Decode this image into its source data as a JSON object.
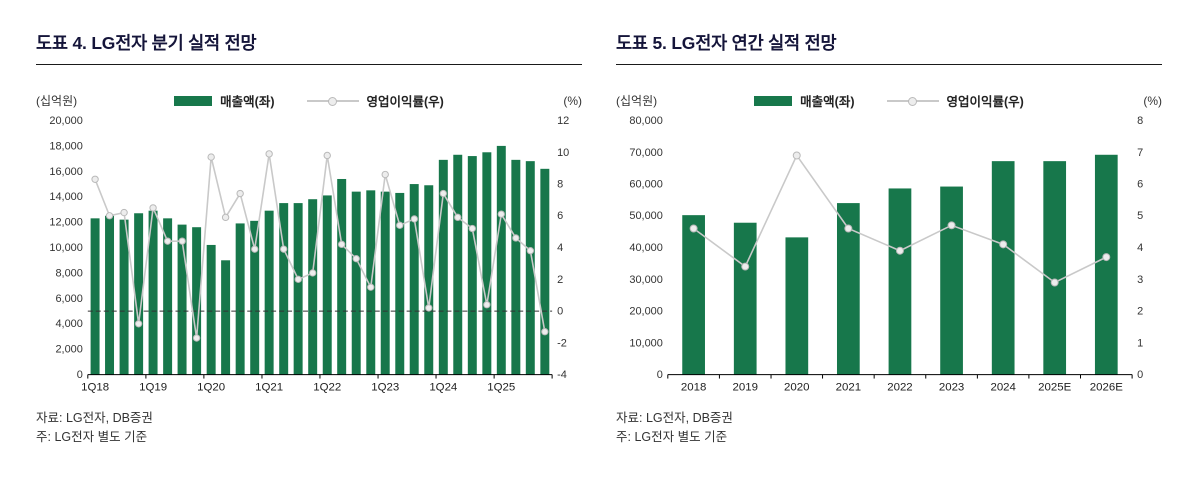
{
  "page": {
    "background": "#ffffff"
  },
  "figures": [
    {
      "title": "도표 4. LG전자 분기 실적 전망",
      "unit_left": "(십억원)",
      "unit_right": "(%)",
      "legend": [
        {
          "label": "매출액(좌)",
          "type": "bar"
        },
        {
          "label": "영업이익률(우)",
          "type": "line"
        }
      ],
      "source": "자료: LG전자, DB증권",
      "note": "주: LG전자 별도 기준",
      "chart_data": {
        "type": "bar+line dual-axis combo",
        "bar_color": "#17774b",
        "line_color": "#c9c9c9",
        "marker_fill": "#ededed",
        "marker_stroke": "#b9b9b9",
        "bar_width_frac": 0.62,
        "marker_r": 3.2,
        "zero_line": true,
        "x_tick_every": 4,
        "x_tick_labels": [
          "1Q18",
          "1Q19",
          "1Q20",
          "1Q21",
          "1Q22",
          "1Q23",
          "1Q24",
          "1Q25"
        ],
        "categories": [
          "1Q18",
          "2Q18",
          "3Q18",
          "4Q18",
          "1Q19",
          "2Q19",
          "3Q19",
          "4Q19",
          "1Q20",
          "2Q20",
          "3Q20",
          "4Q20",
          "1Q21",
          "2Q21",
          "3Q21",
          "4Q21",
          "1Q22",
          "2Q22",
          "3Q22",
          "4Q22",
          "1Q23",
          "2Q23",
          "3Q23",
          "4Q23",
          "1Q24",
          "2Q24",
          "3Q24",
          "4Q24",
          "1Q25",
          "2Q25",
          "3Q25",
          "4Q25"
        ],
        "left_axis": {
          "min": 0,
          "max": 20000,
          "step": 2000,
          "unit": "십억원"
        },
        "right_axis": {
          "min": -4,
          "max": 12,
          "step": 2,
          "unit": "%"
        },
        "series": [
          {
            "name": "매출액(좌)",
            "type": "bar",
            "axis": "left",
            "values": [
              12300,
              12500,
              12200,
              12700,
              12900,
              12300,
              11800,
              11600,
              10200,
              9000,
              11900,
              12100,
              12900,
              13500,
              13500,
              13800,
              14100,
              15400,
              14400,
              14500,
              14400,
              14300,
              15000,
              14900,
              16900,
              17300,
              17200,
              17500,
              18000,
              16900,
              16800,
              16200
            ]
          },
          {
            "name": "영업이익률(우)",
            "type": "line",
            "axis": "right",
            "values": [
              8.3,
              6.0,
              6.2,
              -0.8,
              6.5,
              4.4,
              4.4,
              -1.7,
              9.7,
              5.9,
              7.4,
              3.9,
              9.9,
              3.9,
              2.0,
              2.4,
              9.8,
              4.2,
              3.3,
              1.5,
              8.6,
              5.4,
              5.8,
              0.2,
              7.4,
              5.9,
              5.2,
              0.4,
              6.1,
              4.6,
              3.8,
              -1.3
            ]
          }
        ]
      }
    },
    {
      "title": "도표 5. LG전자 연간 실적 전망",
      "unit_left": "(십억원)",
      "unit_right": "(%)",
      "legend": [
        {
          "label": "매출액(좌)",
          "type": "bar"
        },
        {
          "label": "영업이익률(우)",
          "type": "line"
        }
      ],
      "source": "자료: LG전자, DB증권",
      "note": "주: LG전자 별도 기준",
      "chart_data": {
        "type": "bar+line dual-axis combo",
        "bar_color": "#17774b",
        "line_color": "#c9c9c9",
        "marker_fill": "#ededed",
        "marker_stroke": "#b9b9b9",
        "bar_width_frac": 0.44,
        "marker_r": 3.5,
        "zero_line": false,
        "x_tick_every": 1,
        "x_tick_labels": [
          "2018",
          "2019",
          "2020",
          "2021",
          "2022",
          "2023",
          "2024",
          "2025E",
          "2026E"
        ],
        "categories": [
          "2018",
          "2019",
          "2020",
          "2021",
          "2022",
          "2023",
          "2024",
          "2025E",
          "2026E"
        ],
        "left_axis": {
          "min": 0,
          "max": 80000,
          "step": 10000,
          "unit": "십억원"
        },
        "right_axis": {
          "min": 0,
          "max": 8,
          "step": 1,
          "unit": "%"
        },
        "series": [
          {
            "name": "매출액(좌)",
            "type": "bar",
            "axis": "left",
            "values": [
              50200,
              47800,
              43200,
              54000,
              58600,
              59200,
              67200,
              67200,
              69200
            ]
          },
          {
            "name": "영업이익률(우)",
            "type": "line",
            "axis": "right",
            "values": [
              4.6,
              3.4,
              6.9,
              4.6,
              3.9,
              4.7,
              4.1,
              2.9,
              3.7
            ]
          }
        ]
      }
    }
  ]
}
